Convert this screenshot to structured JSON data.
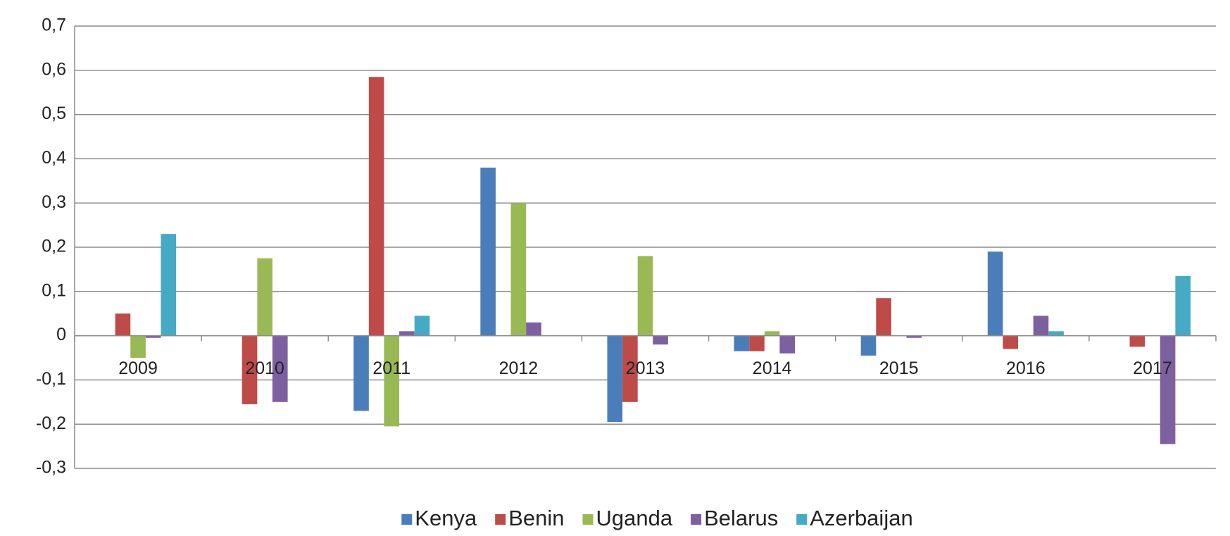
{
  "chart_data": {
    "type": "bar",
    "categories": [
      "2009",
      "2010",
      "2011",
      "2012",
      "2013",
      "2014",
      "2015",
      "2016",
      "2017"
    ],
    "series": [
      {
        "name": "Kenya",
        "color": "#4a7ebb",
        "values": [
          0,
          0,
          -0.17,
          0.38,
          -0.195,
          -0.035,
          -0.045,
          0.19,
          0
        ]
      },
      {
        "name": "Benin",
        "color": "#be4b48",
        "values": [
          0.05,
          -0.155,
          0.585,
          0,
          -0.15,
          -0.035,
          0.085,
          -0.03,
          -0.025
        ]
      },
      {
        "name": "Uganda",
        "color": "#98b954",
        "values": [
          -0.05,
          0.175,
          -0.205,
          0.3,
          0.18,
          0.01,
          0,
          0,
          0
        ]
      },
      {
        "name": "Belarus",
        "color": "#7d60a0",
        "values": [
          -0.005,
          -0.15,
          0.01,
          0.03,
          -0.02,
          -0.04,
          -0.005,
          0.045,
          -0.245
        ]
      },
      {
        "name": "Azerbaijan",
        "color": "#46aac5",
        "values": [
          0.23,
          0,
          0.045,
          0,
          0,
          0,
          0,
          0.01,
          0.135
        ]
      }
    ],
    "ylim": [
      -0.3,
      0.7
    ],
    "yticks": [
      {
        "value": -0.3,
        "label": "-0,3"
      },
      {
        "value": -0.2,
        "label": "-0,2"
      },
      {
        "value": -0.1,
        "label": "-0,1"
      },
      0,
      {
        "value": 0.1,
        "label": "0,1"
      },
      {
        "value": 0.2,
        "label": "0,2"
      },
      {
        "value": 0.3,
        "label": "0,3"
      },
      {
        "value": 0.4,
        "label": "0,4"
      },
      {
        "value": 0.5,
        "label": "0,5"
      },
      {
        "value": 0.6,
        "label": "0,6"
      },
      {
        "value": 0.7,
        "label": "0,7"
      }
    ],
    "grid": true,
    "legend": "bottom"
  }
}
